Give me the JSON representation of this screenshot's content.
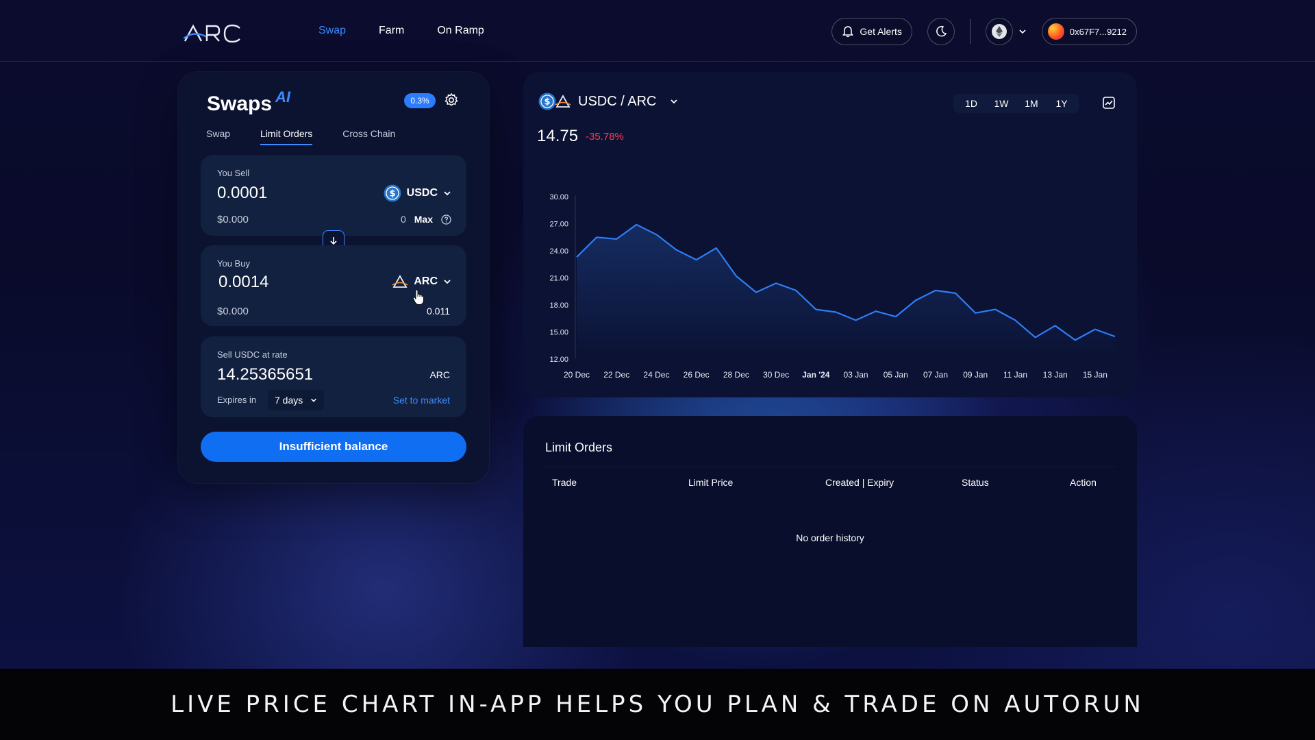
{
  "header": {
    "logo_text": "ARC",
    "nav": [
      {
        "label": "Swap",
        "active": true
      },
      {
        "label": "Farm",
        "active": false
      },
      {
        "label": "On Ramp",
        "active": false
      }
    ],
    "alerts_label": "Get Alerts",
    "theme_icon": "moon-icon",
    "network_icon": "ethereum-icon",
    "wallet_address": "0x67F7...9212"
  },
  "swap": {
    "title": "Swaps",
    "ai_badge": "AI",
    "fee": "0.3%",
    "tabs": [
      {
        "label": "Swap",
        "active": false
      },
      {
        "label": "Limit Orders",
        "active": true
      },
      {
        "label": "Cross Chain",
        "active": false
      }
    ],
    "sell": {
      "label": "You Sell",
      "amount": "0.0001",
      "token": "USDC",
      "usd_value": "$0.000",
      "balance": "0",
      "max_label": "Max"
    },
    "buy": {
      "label": "You Buy",
      "amount": "0.0014",
      "token": "ARC",
      "usd_value": "$0.000",
      "balance": "0.011"
    },
    "rate": {
      "label": "Sell USDC at rate",
      "value": "14.25365651",
      "token": "ARC",
      "expires_label": "Expires in",
      "expires_value": "7 days",
      "set_market_label": "Set to market"
    },
    "cta_label": "Insufficient balance"
  },
  "chart": {
    "pair_label": "USDC / ARC",
    "price": "14.75",
    "change": "-35.78%",
    "ranges": [
      "1D",
      "1W",
      "1M",
      "1Y"
    ],
    "colors": {
      "line": "#2f7df5",
      "negative": "#ff3b4e",
      "accent": "#3c8bff"
    }
  },
  "chart_data": {
    "type": "area",
    "title": "",
    "xlabel": "",
    "ylabel": "",
    "y_ticks": [
      "30.00",
      "27.00",
      "24.00",
      "21.00",
      "18.00",
      "15.00",
      "12.00"
    ],
    "ylim": [
      12,
      30
    ],
    "x_ticks": [
      "20 Dec",
      "22 Dec",
      "24 Dec",
      "26 Dec",
      "28 Dec",
      "30 Dec",
      "Jan '24",
      "03 Jan",
      "05 Jan",
      "07 Jan",
      "09 Jan",
      "11 Jan",
      "13 Jan",
      "15 Jan"
    ],
    "x_tick_index": [
      0,
      2,
      4,
      6,
      8,
      10,
      12,
      14,
      16,
      18,
      20,
      22,
      24,
      26
    ],
    "grid": false,
    "series": [
      {
        "values": [
          23.3,
          25.5,
          25.3,
          26.9,
          25.8,
          24.1,
          23.0,
          24.3,
          21.2,
          19.4,
          20.4,
          19.6,
          17.5,
          17.2,
          16.3,
          17.3,
          16.7,
          18.5,
          19.6,
          19.3,
          17.1,
          17.5,
          16.3,
          14.4,
          15.7,
          14.1,
          15.3,
          14.5
        ]
      }
    ]
  },
  "orders": {
    "title": "Limit Orders",
    "columns": [
      "Trade",
      "Limit Price",
      "Created | Expiry",
      "Status",
      "Action"
    ],
    "empty_text": "No order history"
  },
  "caption": "LIVE PRICE CHART IN-APP HELPS YOU PLAN & TRADE ON AUTORUN"
}
